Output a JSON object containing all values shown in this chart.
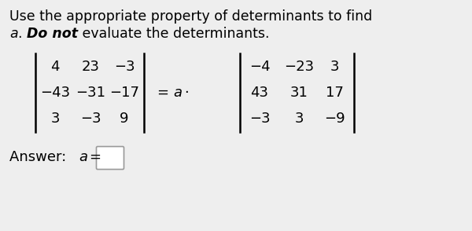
{
  "title_line1": "Use the appropriate property of determinants to find",
  "title_line2_parts": [
    {
      "text": "a",
      "style": "italic",
      "weight": "normal"
    },
    {
      "text": ". ",
      "style": "normal",
      "weight": "normal"
    },
    {
      "text": "Do not",
      "style": "italic",
      "weight": "bold"
    },
    {
      "text": " evaluate the determinants.",
      "style": "normal",
      "weight": "normal"
    }
  ],
  "bg_color": "#eeeeee",
  "mat1": [
    [
      "4",
      "23",
      "−3"
    ],
    [
      "−43",
      "−31",
      "−17"
    ],
    [
      "3",
      "−3",
      "9"
    ]
  ],
  "mat2": [
    [
      "−4",
      "−23",
      "3"
    ],
    [
      "43",
      "31",
      "17"
    ],
    [
      "−3",
      "3",
      "−9"
    ]
  ],
  "font_size_title": 12.5,
  "font_size_matrix": 13,
  "font_size_answer": 13
}
